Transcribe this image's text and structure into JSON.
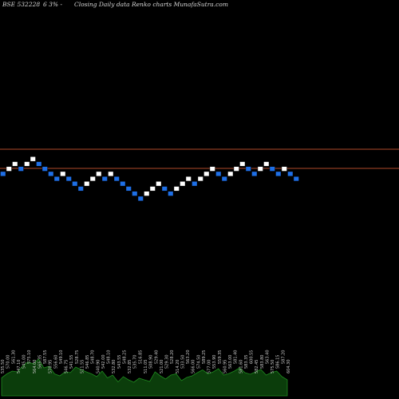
{
  "header": {
    "symbol": "BSE 532228",
    "change": "6  3% -",
    "title": "Closing Daily data  Renko  charts MunafaSutra.com"
  },
  "colors": {
    "background": "#000000",
    "up_brick": "#ffffff",
    "down_brick": "#1e6fe6",
    "level_line": "#b14a2a",
    "volume_area": "#0b3d0b",
    "volume_stroke": "#1f8a1f"
  },
  "chart_data": {
    "type": "renko",
    "brick_directions": [
      "down",
      "up",
      "up",
      "down",
      "up",
      "up",
      "down",
      "down",
      "down",
      "down",
      "up",
      "down",
      "down",
      "down",
      "up",
      "up",
      "up",
      "down",
      "up",
      "down",
      "down",
      "down",
      "down",
      "down",
      "up",
      "up",
      "up",
      "down",
      "down",
      "up",
      "up",
      "up",
      "down",
      "up",
      "up",
      "up",
      "down",
      "down",
      "up",
      "up",
      "up",
      "down",
      "down",
      "up",
      "up",
      "down",
      "down",
      "up",
      "down",
      "down"
    ],
    "level_lines": [
      "upper",
      "lower"
    ],
    "volume_labels": [
      "535.50",
      "570.00",
      "561.30",
      "547.10",
      "545.00",
      "575.10",
      "564.00",
      "565.35",
      "587.55",
      "570.95",
      "556.60",
      "549.10",
      "546.75",
      "541.55",
      "528.75",
      "511.55",
      "546.85",
      "548.70",
      "540.90",
      "542.00",
      "548.10",
      "532.80",
      "543.55",
      "548.25",
      "532.85",
      "535.70",
      "516.85",
      "511.05",
      "508.90",
      "529.40",
      "521.00",
      "529.30",
      "528.20",
      "514.20",
      "533.50",
      "563.20",
      "566.00",
      "574.50",
      "589.25",
      "577.00",
      "553.90",
      "559.35",
      "560.95",
      "563.00",
      "581.40",
      "581.60",
      "583.35",
      "600.55",
      "582.45",
      "583.80",
      "563.40",
      "575.50",
      "586.15",
      "587.20",
      "604.30"
    ],
    "volume_values": [
      0.45,
      0.55,
      0.62,
      0.6,
      0.75,
      0.85,
      0.8,
      0.92,
      0.7,
      0.74,
      0.55,
      0.5,
      0.6,
      0.58,
      0.72,
      0.66,
      0.6,
      0.55,
      0.48,
      0.62,
      0.45,
      0.52,
      0.35,
      0.48,
      0.4,
      0.34,
      0.44,
      0.4,
      0.36,
      0.6,
      0.5,
      0.42,
      0.52,
      0.55,
      0.38,
      0.46,
      0.5,
      0.58,
      0.65,
      0.55,
      0.6,
      0.68,
      0.52,
      0.56,
      0.62,
      0.7,
      0.58,
      0.54,
      0.6,
      0.66,
      0.52,
      0.58,
      0.62,
      0.48,
      0.4
    ]
  }
}
